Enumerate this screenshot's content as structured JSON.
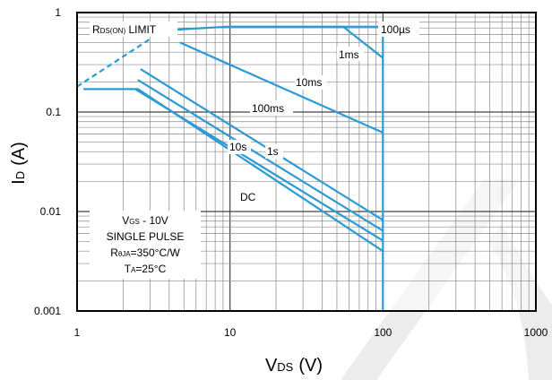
{
  "chart_data": {
    "type": "line",
    "title": "",
    "x_scale": "log",
    "y_scale": "log",
    "xlim": [
      1,
      1000
    ],
    "ylim": [
      0.001,
      1
    ],
    "grid": true,
    "xlabel": {
      "main": "V",
      "sub": "DS",
      "unit": "(V)"
    },
    "ylabel": {
      "main": "I",
      "sub": "D",
      "unit": "(A)"
    },
    "x_ticks": [
      {
        "value": 1,
        "label": "1"
      },
      {
        "value": 10,
        "label": "10"
      },
      {
        "value": 100,
        "label": "100"
      },
      {
        "value": 1000,
        "label": "1000"
      }
    ],
    "y_ticks": [
      {
        "value": 1,
        "label": "1"
      },
      {
        "value": 0.1,
        "label": "0.1"
      },
      {
        "value": 0.01,
        "label": "0.01"
      },
      {
        "value": 0.001,
        "label": "0.001"
      }
    ],
    "line_color": "#2a9ad6",
    "series": [
      {
        "name": "100µs",
        "x": [
          9.5,
          100,
          100
        ],
        "y": [
          0.72,
          0.72,
          0.001
        ]
      },
      {
        "name": "1ms",
        "x": [
          9.5,
          55,
          100
        ],
        "y": [
          0.72,
          0.72,
          0.35
        ]
      },
      {
        "name": "10ms",
        "x": [
          4.7,
          100
        ],
        "y": [
          0.5,
          0.062
        ]
      },
      {
        "name": "100ms",
        "x": [
          2.6,
          100
        ],
        "y": [
          0.27,
          0.0082
        ]
      },
      {
        "name": "1s",
        "x": [
          2.5,
          100
        ],
        "y": [
          0.21,
          0.0064
        ]
      },
      {
        "name": "10s",
        "x": [
          2.4,
          100
        ],
        "y": [
          0.17,
          0.0051
        ]
      },
      {
        "name": "DC",
        "x": [
          1.1,
          2.5,
          100
        ],
        "y": [
          0.17,
          0.17,
          0.004
        ]
      }
    ],
    "rds_limit": {
      "x": [
        1,
        3.1
      ],
      "y": [
        0.18,
        0.56
      ]
    },
    "annotations": {
      "rds": {
        "pre": "R",
        "sub": "DS(ON)",
        "post": " LIMIT"
      },
      "us100": "100µs",
      "ms1": "1ms",
      "ms10": "10ms",
      "ms100": "100ms",
      "s10": "10s",
      "s1": "1s",
      "dc": "DC"
    },
    "conditions": {
      "vgs": {
        "pre": "V",
        "sub": "GS",
        "post": " - 10V"
      },
      "pulse": "SINGLE PULSE",
      "rth": {
        "pre": "R",
        "sub": "θJA",
        "post": "=350°C/W"
      },
      "ta": {
        "pre": "T",
        "sub": "A",
        "post": "=25°C"
      }
    }
  }
}
